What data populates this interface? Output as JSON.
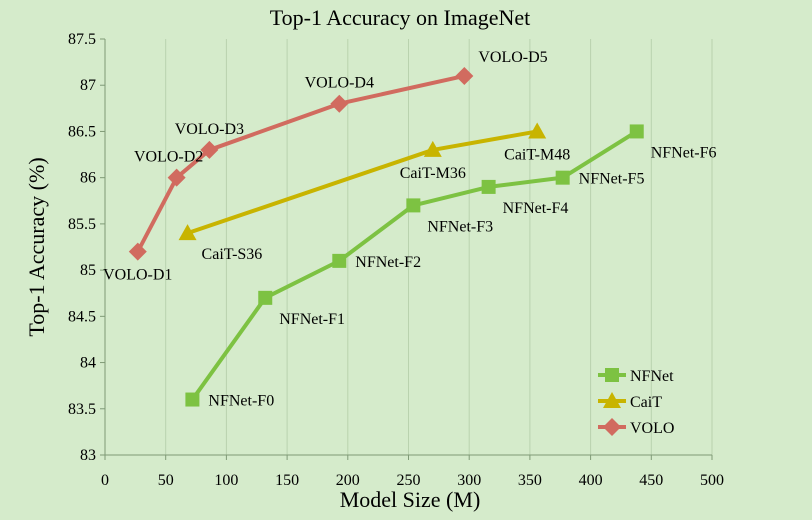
{
  "chart_data": {
    "type": "line",
    "title": "Top-1 Accuracy on ImageNet",
    "xlabel": "Model Size (M)",
    "ylabel": "Top-1 Accuracy (%)",
    "xlim": [
      0,
      500
    ],
    "ylim": [
      83,
      87.5
    ],
    "xticks": [
      0,
      50,
      100,
      150,
      200,
      250,
      300,
      350,
      400,
      450,
      500
    ],
    "xtick_labels": [
      "0",
      "50",
      "100",
      "150",
      "200",
      "250",
      "300",
      "350",
      "400",
      "450",
      "500"
    ],
    "yticks": [
      83,
      83.5,
      84,
      84.5,
      85,
      85.5,
      86,
      86.5,
      87,
      87.5
    ],
    "ytick_labels": [
      "83",
      "83.5",
      "84",
      "84.5",
      "85",
      "85.5",
      "86",
      "86.5",
      "87",
      "87.5"
    ],
    "grid": "vertical",
    "legend_position": "bottom-right",
    "series": [
      {
        "name": "NFNet",
        "color": "#7dc242",
        "marker": "square",
        "points": [
          {
            "x": 72,
            "y": 83.6,
            "label": "NFNet-F0",
            "label_pos": "right"
          },
          {
            "x": 132,
            "y": 84.7,
            "label": "NFNet-F1",
            "label_pos": "below-right"
          },
          {
            "x": 193,
            "y": 85.1,
            "label": "NFNet-F2",
            "label_pos": "right"
          },
          {
            "x": 254,
            "y": 85.7,
            "label": "NFNet-F3",
            "label_pos": "below-right"
          },
          {
            "x": 316,
            "y": 85.9,
            "label": "NFNet-F4",
            "label_pos": "below-right"
          },
          {
            "x": 377,
            "y": 86.0,
            "label": "NFNet-F5",
            "label_pos": "right"
          },
          {
            "x": 438,
            "y": 86.5,
            "label": "NFNet-F6",
            "label_pos": "below-right"
          }
        ]
      },
      {
        "name": "CaiT",
        "color": "#c8b400",
        "marker": "triangle",
        "points": [
          {
            "x": 68,
            "y": 85.4,
            "label": "CaiT-S36",
            "label_pos": "below-right"
          },
          {
            "x": 270,
            "y": 86.3,
            "label": "CaiT-M36",
            "label_pos": "below"
          },
          {
            "x": 356,
            "y": 86.5,
            "label": "CaiT-M48",
            "label_pos": "below"
          }
        ]
      },
      {
        "name": "VOLO",
        "color": "#d16b5f",
        "marker": "diamond",
        "points": [
          {
            "x": 27,
            "y": 85.2,
            "label": "VOLO-D1",
            "label_pos": "below"
          },
          {
            "x": 59,
            "y": 86.0,
            "label": "VOLO-D2",
            "label_pos": "above-left"
          },
          {
            "x": 86,
            "y": 86.3,
            "label": "VOLO-D3",
            "label_pos": "above"
          },
          {
            "x": 193,
            "y": 86.8,
            "label": "VOLO-D4",
            "label_pos": "above"
          },
          {
            "x": 296,
            "y": 87.1,
            "label": "VOLO-D5",
            "label_pos": "above-right"
          }
        ]
      }
    ]
  }
}
